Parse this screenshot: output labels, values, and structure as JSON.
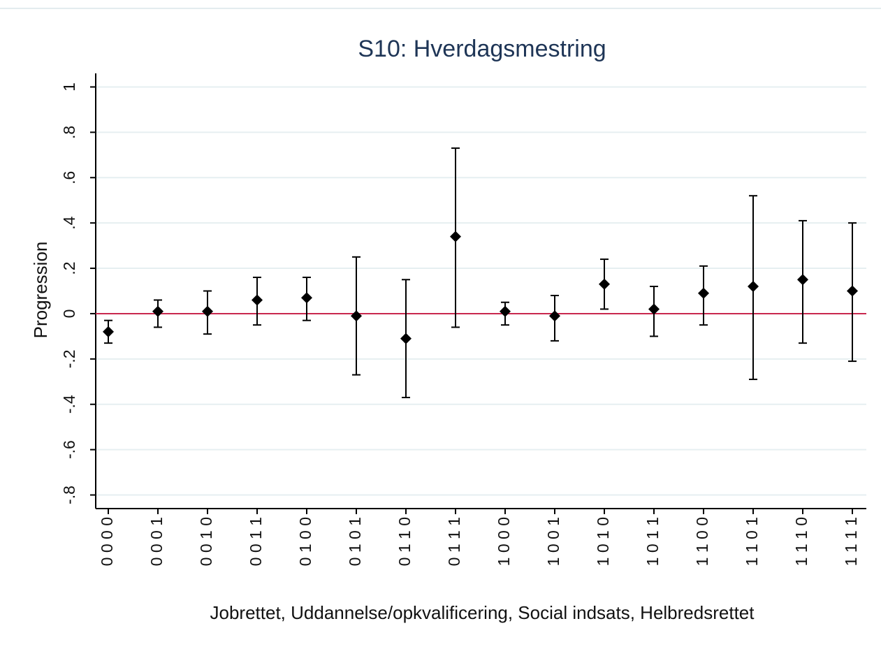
{
  "chart_data": {
    "type": "errorbar",
    "title": "S10: Hverdagsmestring",
    "x_label": "Jobrettet, Uddannelse/opkvalificering, Social indsats, Helbredsrettet",
    "y_label": "Progression",
    "categories": [
      "0 0 0 0",
      "0 0 0 1",
      "0 0 1 0",
      "0 0 1 1",
      "0 1 0 0",
      "0 1 0 1",
      "0 1 1 0",
      "0 1 1 1",
      "1 0 0 0",
      "1 0 0 1",
      "1 0 1 0",
      "1 0 1 1",
      "1 1 0 0",
      "1 1 0 1",
      "1 1 1 0",
      "1 1 1 1"
    ],
    "series": [
      {
        "color": "#000000",
        "values": [
          -0.08,
          0.01,
          0.01,
          0.06,
          0.07,
          -0.01,
          -0.11,
          0.34,
          0.01,
          -0.01,
          0.13,
          0.02,
          0.09,
          0.12,
          0.15,
          0.1
        ],
        "lower": [
          -0.13,
          -0.06,
          -0.09,
          -0.05,
          -0.03,
          -0.27,
          -0.37,
          -0.06,
          -0.05,
          -0.12,
          0.02,
          -0.1,
          -0.05,
          -0.29,
          -0.13,
          -0.21
        ],
        "upper": [
          -0.03,
          0.06,
          0.1,
          0.16,
          0.16,
          0.25,
          0.15,
          0.73,
          0.05,
          0.08,
          0.24,
          0.12,
          0.21,
          0.52,
          0.41,
          0.4
        ]
      }
    ],
    "reference_line": {
      "value": 0,
      "color": "#c8284e"
    },
    "ylim": [
      -0.86,
      1.06
    ],
    "yticks": [
      1,
      {
        "value": 0.8,
        "label": ".8"
      },
      {
        "value": 0.6,
        "label": ".6"
      },
      {
        "value": 0.4,
        "label": ".4"
      },
      {
        "value": 0.2,
        "label": ".2"
      },
      0,
      {
        "value": -0.2,
        "label": "-.2"
      },
      {
        "value": -0.4,
        "label": "-.4"
      },
      {
        "value": -0.6,
        "label": "-.6"
      },
      {
        "value": -0.8,
        "label": "-.8"
      }
    ],
    "grid": true
  }
}
